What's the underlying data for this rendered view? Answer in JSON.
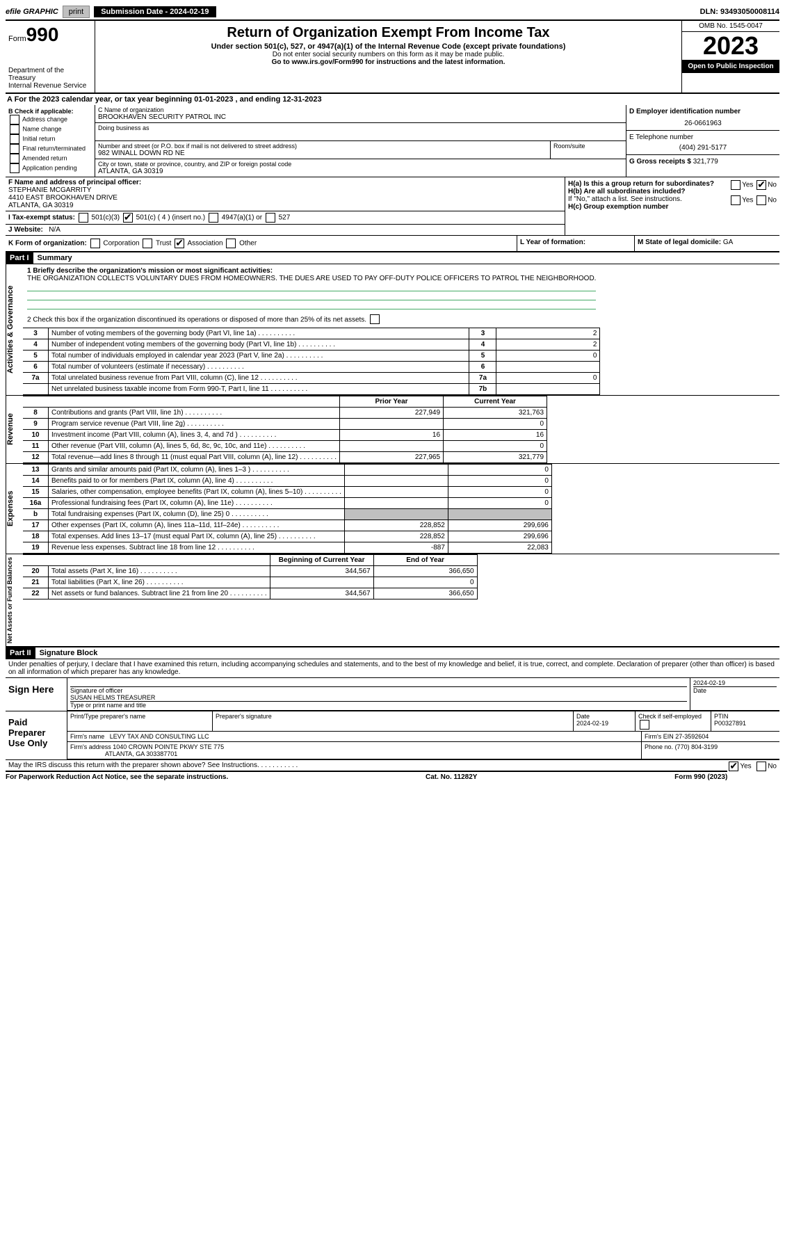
{
  "topbar": {
    "efile": "efile GRAPHIC",
    "print": "print",
    "submission": "Submission Date - 2024-02-19",
    "dln": "DLN: 93493050008114"
  },
  "header": {
    "form_label": "Form",
    "form_number": "990",
    "title": "Return of Organization Exempt From Income Tax",
    "subtitle": "Under section 501(c), 527, or 4947(a)(1) of the Internal Revenue Code (except private foundations)",
    "warn": "Do not enter social security numbers on this form as it may be made public.",
    "goto": "Go to www.irs.gov/Form990 for instructions and the latest information.",
    "dept": "Department of the Treasury",
    "irs": "Internal Revenue Service",
    "omb": "OMB No. 1545-0047",
    "year": "2023",
    "open": "Open to Public Inspection"
  },
  "row_a": "A For the 2023 calendar year, or tax year beginning 01-01-2023   , and ending 12-31-2023",
  "box_b": {
    "title": "B Check if applicable:",
    "items": [
      "Address change",
      "Name change",
      "Initial return",
      "Final return/terminated",
      "Amended return",
      "Application pending"
    ]
  },
  "box_c": {
    "name_lbl": "C Name of organization",
    "name": "BROOKHAVEN SECURITY PATROL INC",
    "dba_lbl": "Doing business as",
    "street_lbl": "Number and street (or P.O. box if mail is not delivered to street address)",
    "street": "982 WINALL DOWN RD NE",
    "room_lbl": "Room/suite",
    "city_lbl": "City or town, state or province, country, and ZIP or foreign postal code",
    "city": "ATLANTA, GA  30319"
  },
  "box_d": {
    "lbl": "D Employer identification number",
    "val": "26-0661963"
  },
  "box_e": {
    "lbl": "E Telephone number",
    "val": "(404) 291-5177"
  },
  "box_g": {
    "lbl": "G Gross receipts $",
    "val": "321,779"
  },
  "box_f": {
    "lbl": "F  Name and address of principal officer:",
    "name": "STEPHANIE MCGARRITY",
    "addr1": "4410 EAST BROOKHAVEN DRIVE",
    "addr2": "ATLANTA, GA  30319"
  },
  "box_h": {
    "a": "H(a)  Is this a group return for subordinates?",
    "b": "H(b)  Are all subordinates included?",
    "b_note": "If \"No,\" attach a list. See instructions.",
    "c": "H(c)  Group exemption number",
    "yes": "Yes",
    "no": "No"
  },
  "box_i": {
    "lbl": "I   Tax-exempt status:",
    "o1": "501(c)(3)",
    "o2": "501(c) ( 4 ) (insert no.)",
    "o3": "4947(a)(1) or",
    "o4": "527"
  },
  "box_j": {
    "lbl": "J   Website:",
    "val": "N/A"
  },
  "box_k": {
    "lbl": "K Form of organization:",
    "opts": [
      "Corporation",
      "Trust",
      "Association",
      "Other"
    ]
  },
  "box_l": "L Year of formation:",
  "box_m": {
    "lbl": "M State of legal domicile:",
    "val": "GA"
  },
  "part1": {
    "hdr": "Part I",
    "title": "Summary"
  },
  "gov": {
    "label": "Activities & Governance",
    "l1": "1  Briefly describe the organization's mission or most significant activities:",
    "mission": "THE ORGANIZATION COLLECTS VOLUNTARY DUES FROM HOMEOWNERS. THE DUES ARE USED TO PAY OFF-DUTY POLICE OFFICERS TO PATROL THE NEIGHBORHOOD.",
    "l2": "2   Check this box         if the organization discontinued its operations or disposed of more than 25% of its net assets.",
    "rows": [
      {
        "n": "3",
        "t": "Number of voting members of the governing body (Part VI, line 1a)",
        "k": "3",
        "v": "2"
      },
      {
        "n": "4",
        "t": "Number of independent voting members of the governing body (Part VI, line 1b)",
        "k": "4",
        "v": "2"
      },
      {
        "n": "5",
        "t": "Total number of individuals employed in calendar year 2023 (Part V, line 2a)",
        "k": "5",
        "v": "0"
      },
      {
        "n": "6",
        "t": "Total number of volunteers (estimate if necessary)",
        "k": "6",
        "v": ""
      },
      {
        "n": "7a",
        "t": "Total unrelated business revenue from Part VIII, column (C), line 12",
        "k": "7a",
        "v": "0"
      },
      {
        "n": "",
        "t": "Net unrelated business taxable income from Form 990-T, Part I, line 11",
        "k": "7b",
        "v": ""
      }
    ]
  },
  "rev": {
    "label": "Revenue",
    "hdr_prior": "Prior Year",
    "hdr_curr": "Current Year",
    "rows": [
      {
        "n": "8",
        "t": "Contributions and grants (Part VIII, line 1h)",
        "p": "227,949",
        "c": "321,763"
      },
      {
        "n": "9",
        "t": "Program service revenue (Part VIII, line 2g)",
        "p": "",
        "c": "0"
      },
      {
        "n": "10",
        "t": "Investment income (Part VIII, column (A), lines 3, 4, and 7d )",
        "p": "16",
        "c": "16"
      },
      {
        "n": "11",
        "t": "Other revenue (Part VIII, column (A), lines 5, 6d, 8c, 9c, 10c, and 11e)",
        "p": "",
        "c": "0"
      },
      {
        "n": "12",
        "t": "Total revenue—add lines 8 through 11 (must equal Part VIII, column (A), line 12)",
        "p": "227,965",
        "c": "321,779"
      }
    ]
  },
  "exp": {
    "label": "Expenses",
    "rows": [
      {
        "n": "13",
        "t": "Grants and similar amounts paid (Part IX, column (A), lines 1–3 )",
        "p": "",
        "c": "0"
      },
      {
        "n": "14",
        "t": "Benefits paid to or for members (Part IX, column (A), line 4)",
        "p": "",
        "c": "0"
      },
      {
        "n": "15",
        "t": "Salaries, other compensation, employee benefits (Part IX, column (A), lines 5–10)",
        "p": "",
        "c": "0"
      },
      {
        "n": "16a",
        "t": "Professional fundraising fees (Part IX, column (A), line 11e)",
        "p": "",
        "c": "0"
      },
      {
        "n": "b",
        "t": "Total fundraising expenses (Part IX, column (D), line 25) 0",
        "p": "gray",
        "c": "gray"
      },
      {
        "n": "17",
        "t": "Other expenses (Part IX, column (A), lines 11a–11d, 11f–24e)",
        "p": "228,852",
        "c": "299,696"
      },
      {
        "n": "18",
        "t": "Total expenses. Add lines 13–17 (must equal Part IX, column (A), line 25)",
        "p": "228,852",
        "c": "299,696"
      },
      {
        "n": "19",
        "t": "Revenue less expenses. Subtract line 18 from line 12",
        "p": "-887",
        "c": "22,083"
      }
    ]
  },
  "net": {
    "label": "Net Assets or Fund Balances",
    "hdr_beg": "Beginning of Current Year",
    "hdr_end": "End of Year",
    "rows": [
      {
        "n": "20",
        "t": "Total assets (Part X, line 16)",
        "p": "344,567",
        "c": "366,650"
      },
      {
        "n": "21",
        "t": "Total liabilities (Part X, line 26)",
        "p": "",
        "c": "0"
      },
      {
        "n": "22",
        "t": "Net assets or fund balances. Subtract line 21 from line 20",
        "p": "344,567",
        "c": "366,650"
      }
    ]
  },
  "part2": {
    "hdr": "Part II",
    "title": "Signature Block"
  },
  "perjury": "Under penalties of perjury, I declare that I have examined this return, including accompanying schedules and statements, and to the best of my knowledge and belief, it is true, correct, and complete. Declaration of preparer (other than officer) is based on all information of which preparer has any knowledge.",
  "sign": {
    "label": "Sign Here",
    "sig_lbl": "Signature of officer",
    "date": "2024-02-19",
    "date_lbl": "Date",
    "name": "SUSAN HELMS TREASURER",
    "name_lbl": "Type or print name and title"
  },
  "prep": {
    "label": "Paid Preparer Use Only",
    "name_lbl": "Print/Type preparer's name",
    "sig_lbl": "Preparer's signature",
    "date_lbl": "Date",
    "date": "2024-02-19",
    "check_lbl": "Check         if self-employed",
    "ptin_lbl": "PTIN",
    "ptin": "P00327891",
    "firm_name_lbl": "Firm's name",
    "firm_name": "LEVY TAX AND CONSULTING LLC",
    "firm_ein_lbl": "Firm's EIN",
    "firm_ein": "27-3592604",
    "firm_addr_lbl": "Firm's address",
    "firm_addr1": "1040 CROWN POINTE PKWY STE 775",
    "firm_addr2": "ATLANTA, GA  303387701",
    "phone_lbl": "Phone no.",
    "phone": "(770) 804-3199"
  },
  "discuss": "May the IRS discuss this return with the preparer shown above? See Instructions.",
  "footer": {
    "left": "For Paperwork Reduction Act Notice, see the separate instructions.",
    "mid": "Cat. No. 11282Y",
    "right": "Form 990 (2023)"
  },
  "colors": {
    "link": "#0000cc",
    "rule": "#4a6"
  }
}
